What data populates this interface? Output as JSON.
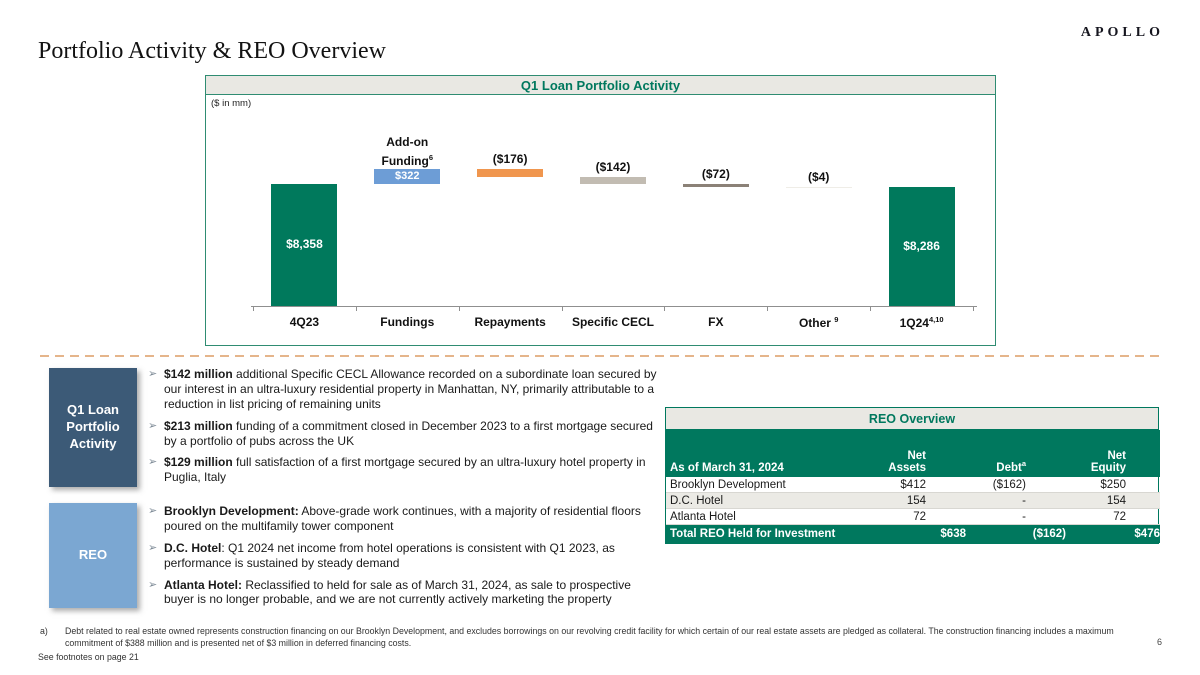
{
  "slide": {
    "logo": "APOLLO",
    "title": "Portfolio Activity & REO Overview",
    "page_number": "6",
    "footnote_marker": "a)",
    "footnote_a": "Debt related to real estate owned represents construction financing on our Brooklyn Development, and excludes borrowings on our revolving credit facility for which certain of our real estate assets are pledged as collateral. The construction financing includes a maximum commitment of $388 million and is presented net of $3 million in deferred financing costs.",
    "footnote_see": "See footnotes on page 21"
  },
  "icons": {
    "bullet": "➢"
  },
  "chart": {
    "title": "Q1 Loan Portfolio Activity",
    "units_note": "($ in mm)",
    "annotation": {
      "line1": "Add-on",
      "line2": "Funding",
      "sup": "6"
    }
  },
  "chart_data": {
    "type": "bar",
    "subtype": "waterfall",
    "title": "Q1 Loan Portfolio Activity",
    "units": "$ in mm",
    "ylim": [
      5700,
      10710
    ],
    "grid": false,
    "categories": [
      {
        "label": "4Q23",
        "sup": ""
      },
      {
        "label": "Fundings",
        "sup": ""
      },
      {
        "label": "Repayments",
        "sup": ""
      },
      {
        "label": "Specific CECL",
        "sup": ""
      },
      {
        "label": "FX",
        "sup": ""
      },
      {
        "label": "Other",
        "sup": "9"
      },
      {
        "label": "1Q24",
        "sup": "4,10"
      }
    ],
    "bars": [
      {
        "category": "4Q23",
        "value": 8358,
        "start": 5700,
        "end": 8358,
        "label": "$8,358",
        "label_pos": "inside",
        "color": "#00795C"
      },
      {
        "category": "Fundings",
        "value": 322,
        "start": 8358,
        "end": 8680,
        "label": "$322",
        "label_pos": "inside",
        "color": "#6D9DD6"
      },
      {
        "category": "Repayments",
        "value": -176,
        "start": 8680,
        "end": 8504,
        "label": "($176)",
        "label_pos": "above",
        "color": "#F0964E"
      },
      {
        "category": "Specific CECL",
        "value": -142,
        "start": 8504,
        "end": 8362,
        "label": "($142)",
        "label_pos": "above",
        "color": "#C2BCB2"
      },
      {
        "category": "FX",
        "value": -72,
        "start": 8362,
        "end": 8290,
        "label": "($72)",
        "label_pos": "above",
        "color": "#8B8177"
      },
      {
        "category": "Other",
        "value": -4,
        "start": 8290,
        "end": 8286,
        "label": "($4)",
        "label_pos": "above",
        "color": "#EFEDE7"
      },
      {
        "category": "1Q24",
        "value": 8286,
        "start": 5700,
        "end": 8286,
        "label": "$8,286",
        "label_pos": "inside",
        "color": "#00795C"
      }
    ]
  },
  "panels": {
    "loan_activity": {
      "box_label": "Q1 Loan Portfolio Activity",
      "bullets": [
        {
          "bold": "$142 million",
          "rest": " additional Specific CECL Allowance recorded on a subordinate loan secured by our interest in an ultra-luxury residential property in Manhattan, NY, primarily attributable to a reduction in list pricing of remaining units"
        },
        {
          "bold": "$213 million",
          "rest": " funding of a commitment closed in December 2023 to a first mortgage secured by a portfolio of pubs across the UK"
        },
        {
          "bold": "$129 million",
          "rest": " full satisfaction of a first mortgage secured by an ultra-luxury hotel property in Puglia, Italy"
        }
      ]
    },
    "reo": {
      "box_label": "REO",
      "bullets": [
        {
          "bold": "Brooklyn Development:",
          "rest": " Above-grade work continues, with a majority of residential floors poured on the multifamily tower component"
        },
        {
          "bold": "D.C. Hotel",
          "rest": ": Q1 2024 net income from hotel operations is consistent with Q1 2023, as performance is sustained by steady demand"
        },
        {
          "bold": "Atlanta Hotel:",
          "rest": " Reclassified to held for sale as of March 31, 2024, as sale to prospective buyer is no longer probable, and we are not currently actively marketing the property"
        }
      ]
    }
  },
  "reo_table": {
    "title": "REO Overview",
    "header": {
      "as_of": "As of March 31, 2024",
      "net_assets_line1": "Net",
      "net_assets_line2": "Assets",
      "debt": "Debt",
      "debt_sup": "a",
      "net_equity_line1": "Net",
      "net_equity_line2": "Equity"
    },
    "rows": [
      {
        "name": "Brooklyn Development",
        "net_assets": "$412",
        "debt": "($162)",
        "net_equity": "$250"
      },
      {
        "name": "D.C. Hotel",
        "net_assets": "154",
        "debt": "-",
        "net_equity": "154"
      },
      {
        "name": "Atlanta Hotel",
        "net_assets": "72",
        "debt": "-",
        "net_equity": "72"
      }
    ],
    "total": {
      "name": "Total REO Held for Investment",
      "net_assets": "$638",
      "debt": "($162)",
      "net_equity": "$476"
    }
  },
  "colors": {
    "teal": "#00785E",
    "chart_border": "#2F8C72",
    "bar_blue": "#6D9DD6",
    "bar_orange": "#F0964E",
    "bar_gray": "#C2BCB2",
    "bar_darkgray": "#8B8177",
    "bar_faint": "#EFEDE7",
    "box_dark_blue": "#3C5A77",
    "box_light_blue": "#7BA7D2",
    "dashed_line": "#E5B58B"
  }
}
